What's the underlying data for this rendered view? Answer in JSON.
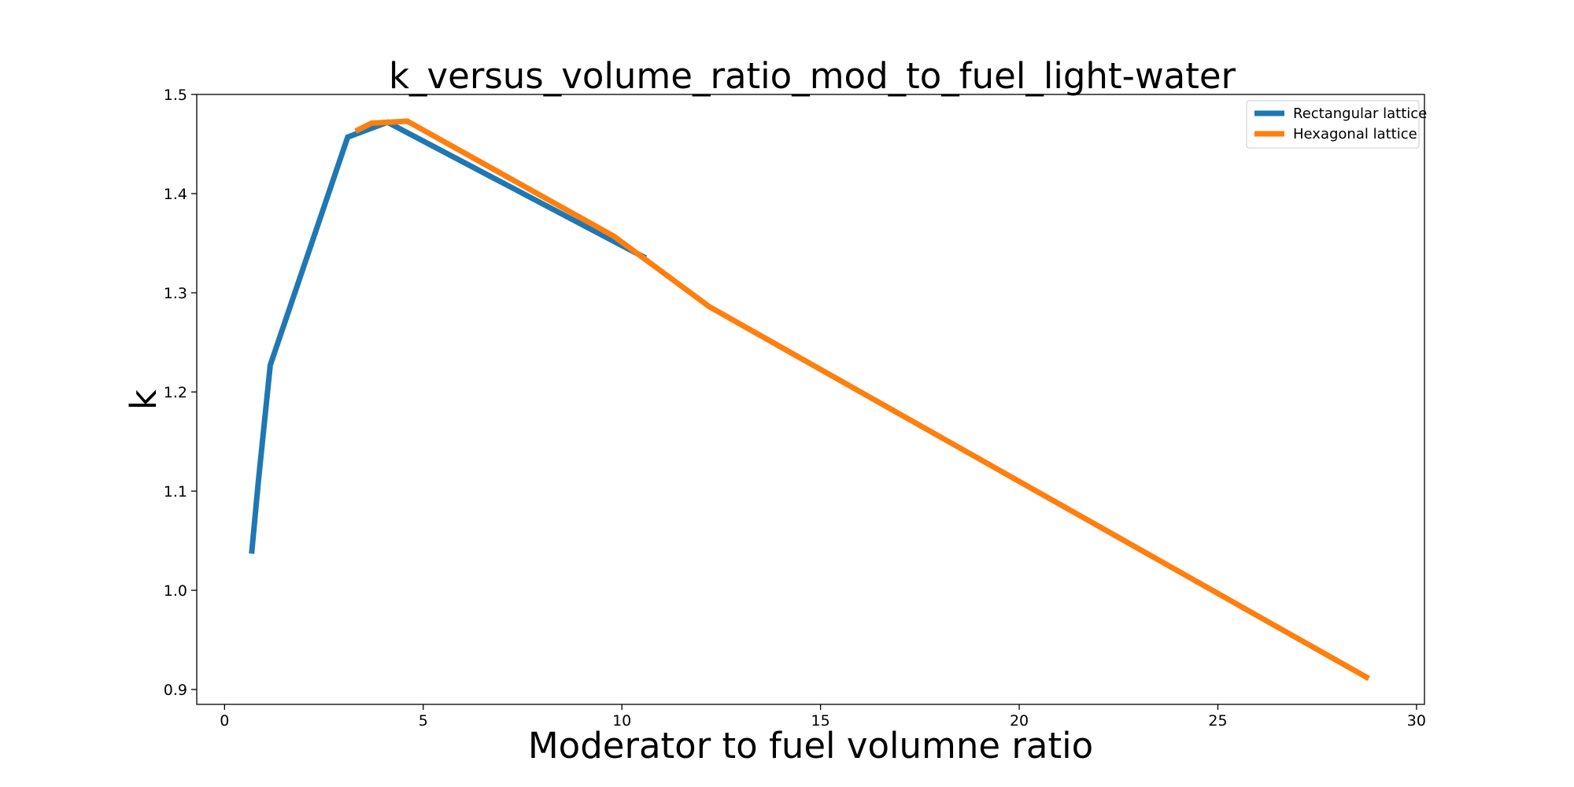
{
  "chart_data": {
    "type": "line",
    "title": "k_versus_volume_ratio_mod_to_fuel_light-water",
    "xlabel": "Moderator to fuel volumne ratio",
    "ylabel": "k",
    "xlim": [
      -0.7,
      30.2
    ],
    "ylim": [
      0.885,
      1.5
    ],
    "xticks": [
      0,
      5,
      10,
      15,
      20,
      25,
      30
    ],
    "yticks": [
      0.9,
      1.0,
      1.1,
      1.2,
      1.3,
      1.4,
      1.5
    ],
    "xtick_labels": [
      "0",
      "5",
      "10",
      "15",
      "20",
      "25",
      "30"
    ],
    "ytick_labels": [
      "0.9",
      "1.0",
      "1.1",
      "1.2",
      "1.3",
      "1.4",
      "1.5"
    ],
    "grid": false,
    "legend_position": "top-right",
    "series": [
      {
        "name": "Rectangular lattice",
        "color": "#1f77b4",
        "x": [
          0.68,
          0.85,
          1.15,
          3.1,
          4.1,
          10.6
        ],
        "y": [
          1.037,
          1.11,
          1.227,
          1.457,
          1.472,
          1.335
        ]
      },
      {
        "name": "Hexagonal lattice",
        "color": "#ff7f0e",
        "x": [
          3.3,
          3.7,
          4.6,
          9.8,
          12.2,
          28.8
        ],
        "y": [
          1.463,
          1.471,
          1.473,
          1.357,
          1.286,
          0.911
        ]
      }
    ]
  }
}
